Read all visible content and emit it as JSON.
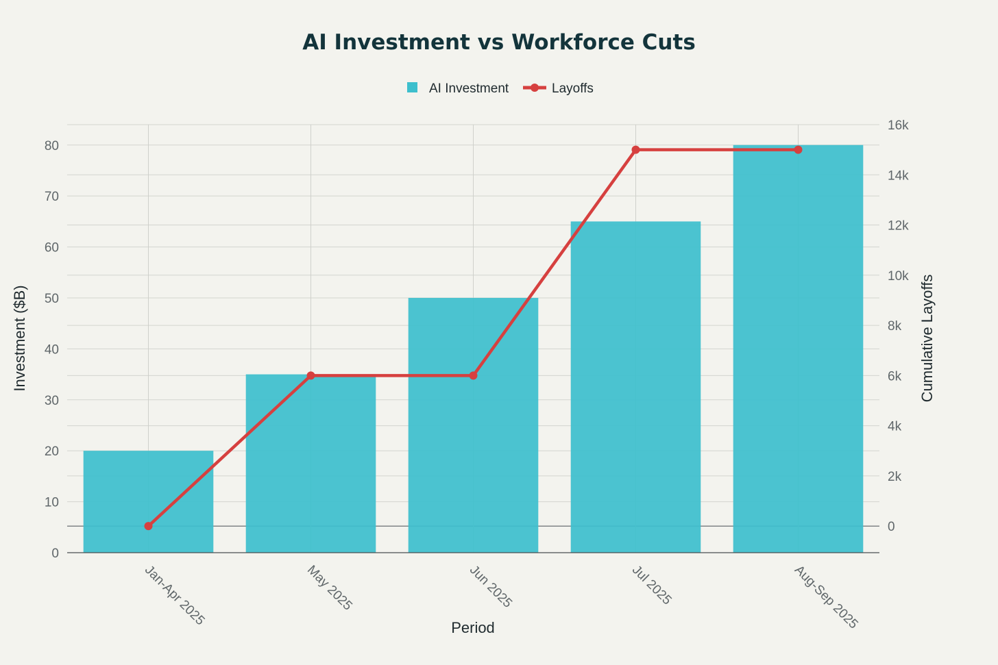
{
  "chart_data": {
    "type": "bar",
    "title": "AI Investment vs Workforce Cuts",
    "xlabel": "Period",
    "ylabel": "Investment ($B)",
    "y2label": "Cumulative Layoffs",
    "categories": [
      "Jan-Apr 2025",
      "May 2025",
      "Jun 2025",
      "Jul 2025",
      "Aug-Sep 2025"
    ],
    "series": [
      {
        "name": "AI Investment",
        "type": "bar",
        "axis": "left",
        "values": [
          20,
          35,
          50,
          65,
          80
        ]
      },
      {
        "name": "Layoffs",
        "type": "line",
        "axis": "right",
        "values": [
          0,
          6000,
          6000,
          15000,
          15000
        ]
      }
    ],
    "ylim": [
      0,
      84
    ],
    "y2lim": [
      -1060,
      16000
    ],
    "yticks": [
      0,
      10,
      20,
      30,
      40,
      50,
      60,
      70,
      80
    ],
    "y2ticks": [
      0,
      2000,
      4000,
      6000,
      8000,
      10000,
      12000,
      14000,
      16000
    ],
    "y2tick_labels": [
      "0",
      "2k",
      "4k",
      "6k",
      "8k",
      "10k",
      "12k",
      "14k",
      "16k"
    ],
    "grid": true,
    "legend_position": "top-center",
    "colors": {
      "bar": "#3dbfcd",
      "line": "#d6403f",
      "title": "#13343b"
    }
  }
}
